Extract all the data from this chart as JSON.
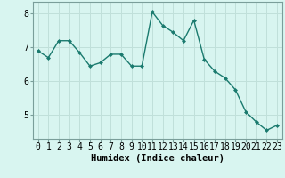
{
  "x": [
    0,
    1,
    2,
    3,
    4,
    5,
    6,
    7,
    8,
    9,
    10,
    11,
    12,
    13,
    14,
    15,
    16,
    17,
    18,
    19,
    20,
    21,
    22,
    23
  ],
  "y": [
    6.9,
    6.7,
    7.2,
    7.2,
    6.85,
    6.45,
    6.55,
    6.8,
    6.8,
    6.45,
    6.45,
    8.05,
    7.65,
    7.45,
    7.2,
    7.8,
    6.65,
    6.3,
    6.1,
    5.75,
    5.1,
    4.8,
    4.55,
    4.7
  ],
  "line_color": "#1a7a6e",
  "marker": "D",
  "marker_size": 2.0,
  "bg_color": "#d8f5f0",
  "grid_color": "#c0e0da",
  "xlabel": "Humidex (Indice chaleur)",
  "ylim": [
    4.3,
    8.35
  ],
  "xlim": [
    -0.5,
    23.5
  ],
  "yticks": [
    5,
    6,
    7,
    8
  ],
  "xtick_labels": [
    "0",
    "1",
    "2",
    "3",
    "4",
    "5",
    "6",
    "7",
    "8",
    "9",
    "10",
    "11",
    "12",
    "13",
    "14",
    "15",
    "16",
    "17",
    "18",
    "19",
    "20",
    "21",
    "22",
    "23"
  ],
  "xlabel_fontsize": 7.5,
  "tick_fontsize": 7.0,
  "linewidth": 1.0
}
